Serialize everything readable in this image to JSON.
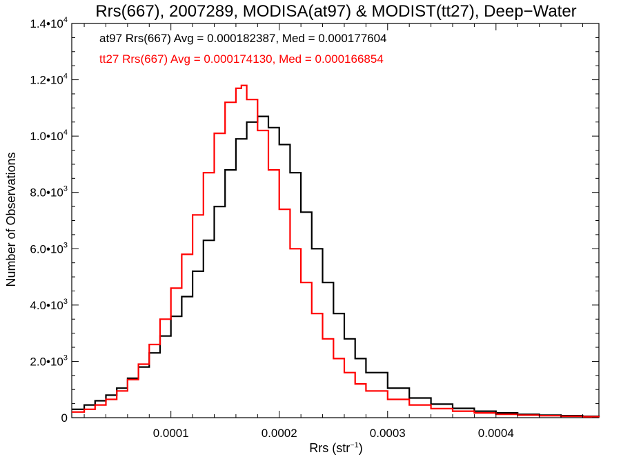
{
  "chart_data": {
    "type": "line",
    "title": "Rrs(667), 2007289, MODISA(at97) & MODIST(tt27), Deep−Water",
    "xlabel": "Rrs (str",
    "xlabel_sup": "−1",
    "xlabel_end": ")",
    "ylabel": "Number of Observations",
    "xlim": [
      8.5e-06,
      0.000495
    ],
    "ylim": [
      0,
      14000
    ],
    "x_ticks": [
      {
        "value": 0.0001,
        "label": "0.0001"
      },
      {
        "value": 0.0002,
        "label": "0.0002"
      },
      {
        "value": 0.0003,
        "label": "0.0003"
      },
      {
        "value": 0.0004,
        "label": "0.0004"
      }
    ],
    "y_ticks": [
      {
        "value": 0,
        "label": "0",
        "sup": ""
      },
      {
        "value": 2000,
        "label": "2.0•10",
        "sup": "3"
      },
      {
        "value": 4000,
        "label": "4.0•10",
        "sup": "3"
      },
      {
        "value": 6000,
        "label": "6.0•10",
        "sup": "3"
      },
      {
        "value": 8000,
        "label": "8.0•10",
        "sup": "3"
      },
      {
        "value": 10000,
        "label": "1.0•10",
        "sup": "4"
      },
      {
        "value": 12000,
        "label": "1.2•10",
        "sup": "4"
      },
      {
        "value": 14000,
        "label": "1.4•10",
        "sup": "4"
      }
    ],
    "annotations": [
      {
        "text": "at97 Rrs(667) Avg = 0.000182387, Med = 0.000177604",
        "color": "#000000"
      },
      {
        "text": "tt27 Rrs(667) Avg = 0.000174130, Med = 0.000166854",
        "color": "#ff0000"
      }
    ],
    "series": [
      {
        "color": "#000000",
        "step": true,
        "x": [
          8.5e-06,
          2e-05,
          3e-05,
          4e-05,
          5e-05,
          6e-05,
          7e-05,
          8e-05,
          9e-05,
          0.0001,
          0.00011,
          0.00012,
          0.00013,
          0.00014,
          0.00015,
          0.00016,
          0.00017,
          0.00018,
          0.00019,
          0.0002,
          0.00021,
          0.00022,
          0.00023,
          0.00024,
          0.00025,
          0.00026,
          0.00027,
          0.00028,
          0.0003,
          0.00032,
          0.00034,
          0.00036,
          0.00038,
          0.0004,
          0.00042,
          0.00044,
          0.00046,
          0.00048,
          0.000495
        ],
        "y": [
          300,
          450,
          600,
          800,
          1050,
          1400,
          1800,
          2300,
          2900,
          3600,
          4300,
          5200,
          6300,
          7500,
          8800,
          9900,
          10500,
          10700,
          10300,
          9700,
          8700,
          7300,
          6000,
          4800,
          3700,
          2800,
          2100,
          1600,
          1050,
          700,
          480,
          330,
          230,
          170,
          120,
          90,
          70,
          50,
          30
        ]
      },
      {
        "color": "#ff0000",
        "step": true,
        "x": [
          8.5e-06,
          2e-05,
          3e-05,
          4e-05,
          5e-05,
          6e-05,
          7e-05,
          8e-05,
          9e-05,
          0.0001,
          0.00011,
          0.00012,
          0.00013,
          0.00014,
          0.00015,
          0.00016,
          0.000165,
          0.00017,
          0.00018,
          0.00019,
          0.0002,
          0.00021,
          0.00022,
          0.00023,
          0.00024,
          0.00025,
          0.00026,
          0.00027,
          0.00028,
          0.0003,
          0.00032,
          0.00034,
          0.00036,
          0.00038,
          0.0004,
          0.00042,
          0.00044,
          0.00046,
          0.00048,
          0.000495
        ],
        "y": [
          200,
          300,
          450,
          650,
          950,
          1350,
          1900,
          2600,
          3500,
          4600,
          5800,
          7200,
          8700,
          10100,
          11200,
          11700,
          11800,
          11300,
          10200,
          8800,
          7400,
          6000,
          4800,
          3700,
          2800,
          2100,
          1600,
          1200,
          950,
          650,
          450,
          320,
          230,
          170,
          120,
          90,
          70,
          50,
          35,
          20
        ]
      }
    ]
  }
}
